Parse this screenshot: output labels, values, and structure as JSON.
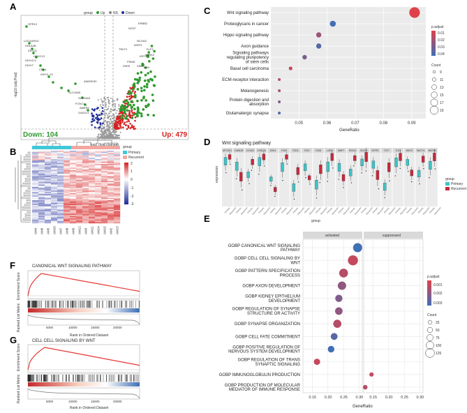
{
  "panels": {
    "A": {
      "label": "A",
      "legend_title": "group",
      "legend_items": [
        "Up",
        "NS",
        "Down"
      ],
      "down_text": "Down: 104",
      "up_text": "Up: 479",
      "xlabel": "log2 (fold change)",
      "ylabel": "-log10 (adj.Pval)",
      "gene_labels_left": [
        "GPR12",
        "LOC440910",
        "HHLA2B",
        "IGLV11",
        "HOXC13",
        "IGHV2-5",
        "IGHV7",
        "CRL4",
        "IGKV1-13",
        "SLC16A5",
        "ANKRD30",
        "SLC24A3",
        "FOXC1",
        "AMER2",
        "GAS2L3"
      ],
      "gene_labels_right": [
        "NOS7",
        "ERBB2",
        "NCOA3",
        "TEKT1",
        "WNT5",
        "FRMD",
        "KRT4",
        "ZNF8",
        "SIM4",
        "ELF3",
        "RBX",
        "NTRK2"
      ]
    },
    "B": {
      "label": "B",
      "legend_title": "group",
      "legend_items": [
        "Primary",
        "Recurrent"
      ],
      "scale_ticks": [
        "2",
        "1",
        "0",
        "-1",
        "-2",
        "-3"
      ],
      "sample_labels": [
        "AM4",
        "AM6",
        "AM5",
        "AM10",
        "AM7",
        "AM8",
        "AM9",
        "AM12",
        "AM3",
        "AM11",
        "AM14",
        "AM15",
        "AM2",
        "AM13"
      ]
    },
    "C": {
      "label": "C",
      "xlabel": "GeneRatio",
      "legend_padj_title": "p.adjust",
      "legend_padj_ticks": [
        "0.01",
        "0.02",
        "0.03",
        "0.04"
      ],
      "legend_count_title": "Count",
      "legend_count_values": [
        "9",
        "11",
        "13",
        "15",
        "17",
        "19"
      ]
    },
    "D": {
      "label": "D",
      "title": "Wnt signaling pathway",
      "ylabel": "expression",
      "xlabel": "group",
      "legend_title": "group",
      "legend_items": [
        "Primary",
        "Recurrent"
      ],
      "genes": [
        "APCDD1",
        "CAMK2B",
        "CCND3",
        "CSNK2A",
        "DKK4",
        "FZD5",
        "FZD3",
        "FZD7",
        "FZD8",
        "LGR4",
        "MMP7",
        "RGS12",
        "SOX10",
        "SFRP1",
        "TCF7",
        "TLE2",
        "WNT5",
        "WNT7A",
        "WNT8B"
      ]
    },
    "E": {
      "label": "E",
      "facet_activated": "activated",
      "facet_suppressed": "suppressed",
      "xlabel": "GeneRatio",
      "legend_padj_title": "p.adjust",
      "legend_padj_ticks": [
        "0.001",
        "0.002",
        "0.003"
      ],
      "legend_count_title": "Count",
      "legend_count_values": [
        "25",
        "50",
        "75",
        "100",
        "125"
      ]
    },
    "F": {
      "label": "F",
      "title": "CANONICAL WNT SIGNALING PATHWAY",
      "ylabel_top": "Enrichment Score",
      "ylabel_bottom": "Ranked List Metric",
      "xlabel": "Rank in Ordered Dataset",
      "xticks": [
        "5000",
        "10000",
        "15000",
        "20000"
      ]
    },
    "G": {
      "label": "G",
      "title": "CELL CELL SIGNALING BY WNT",
      "ylabel_top": "Enrichment Score",
      "ylabel_bottom": "Ranked List Metric",
      "xlabel": "Rank in Ordered Dataset",
      "xticks": [
        "5000",
        "10000",
        "15000",
        "20000"
      ]
    }
  },
  "chart_data": [
    {
      "panel": "C",
      "type": "scatter",
      "title": "",
      "xlabel": "GeneRatio",
      "xlim": [
        0.04,
        0.095
      ],
      "xticks": [
        0.05,
        0.06,
        0.07,
        0.08,
        0.09
      ],
      "categories": [
        "Wnt signaling pathway",
        "Proteoglycans in cancer",
        "Hippo signaling pathway",
        "Axon guidance",
        "Signaling pathways regulating pluripotency of stem cells",
        "Basal cell carcinoma",
        "ECM-receptor interaction",
        "Melanogenesis",
        "Protein digestion and absorption",
        "Glutamatergic synapse"
      ],
      "gene_ratio": [
        0.091,
        0.062,
        0.057,
        0.057,
        0.052,
        0.047,
        0.043,
        0.043,
        0.043,
        0.043
      ],
      "count": [
        19,
        13,
        12,
        12,
        11,
        10,
        9,
        9,
        9,
        9
      ],
      "p_adjust": [
        0.001,
        0.045,
        0.02,
        0.04,
        0.03,
        0.01,
        0.012,
        0.018,
        0.03,
        0.042
      ]
    },
    {
      "panel": "E",
      "type": "scatter",
      "xlabel": "GeneRatio",
      "facets": [
        "activated",
        "suppressed"
      ],
      "xticks": [
        0.15,
        0.2,
        0.25,
        0.3
      ],
      "facet_xlim": [
        0.12,
        0.31
      ],
      "categories": [
        "GOBP CANONICAL WNT SIGNALING PATHWAY",
        "GOBP CELL CELL SIGNALING BY WNT",
        "GOBP PATTERN SPECIFICATION PROCESS",
        "GOBP AXON DEVELOPMENT",
        "GOBP KIDNEY EPITHELIUM DEVELOPMENT",
        "GOBP REGULATION OF SYNAPSE STRUCTURE OR ACTIVITY",
        "GOBP SYNAPSE ORGANIZATION",
        "GOBP CELL FATE COMMITMENT",
        "GOBP POSITIVE REGULATION OF NERVOUS SYSTEM DEVELOPMENT",
        "GOBP REGULATION OF TRANS SYNAPTIC SIGNALING",
        "GOBP IMMUNOGLOBULIN PRODUCTION",
        "GOBP PRODUCTION OF MOLECULAR MEDIATOR OF IMMUNE RESPONSE"
      ],
      "facet": [
        "activated",
        "activated",
        "activated",
        "activated",
        "activated",
        "activated",
        "activated",
        "activated",
        "activated",
        "activated",
        "suppressed",
        "suppressed"
      ],
      "gene_ratio": [
        0.295,
        0.28,
        0.25,
        0.245,
        0.235,
        0.235,
        0.23,
        0.22,
        0.21,
        0.165,
        0.145,
        0.125
      ],
      "count": [
        100,
        115,
        95,
        90,
        70,
        75,
        85,
        65,
        60,
        55,
        25,
        30
      ],
      "p_adjust": [
        0.003,
        0.0005,
        0.0008,
        0.0015,
        0.0018,
        0.0015,
        0.0008,
        0.0025,
        0.003,
        0.0005,
        0.0005,
        0.0008
      ]
    }
  ]
}
